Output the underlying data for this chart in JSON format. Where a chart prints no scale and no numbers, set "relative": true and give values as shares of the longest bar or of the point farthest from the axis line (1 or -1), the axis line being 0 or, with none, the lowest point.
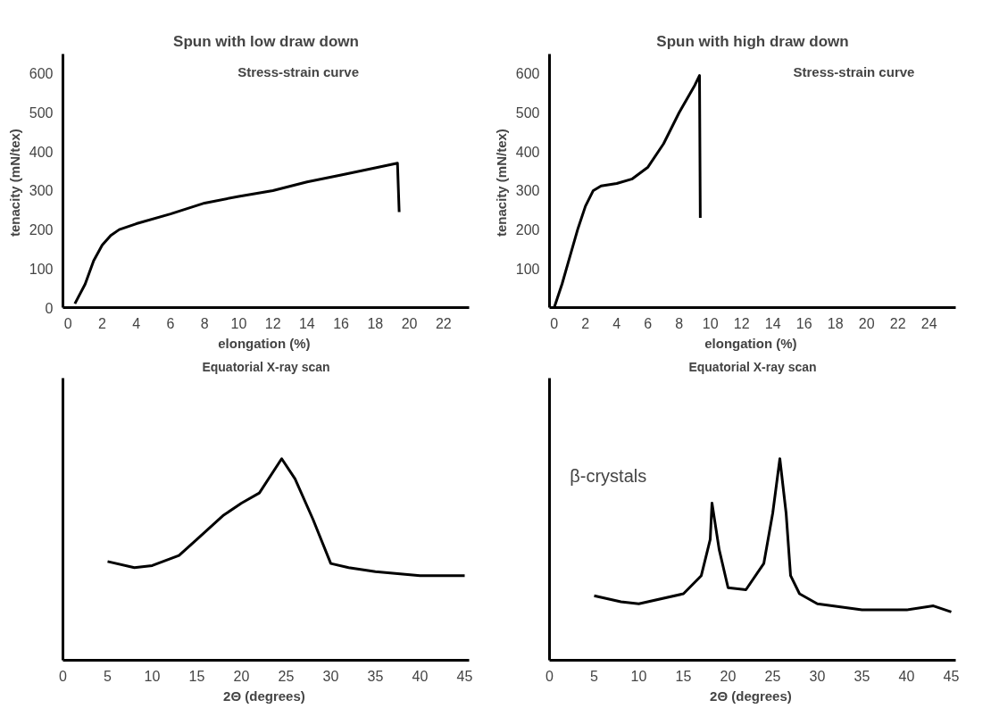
{
  "chart_data": [
    {
      "type": "line",
      "title": "Spun with low draw down",
      "subtitle": "Stress-strain curve",
      "xlabel": "elongation  (%)",
      "ylabel": "tenacity  (mN/tex)",
      "xlim": [
        -0.3,
        23.5
      ],
      "ylim": [
        0,
        650
      ],
      "xticks": [
        0,
        2,
        4,
        6,
        8,
        10,
        12,
        14,
        16,
        18,
        20,
        22
      ],
      "yticks": [
        0,
        100,
        200,
        300,
        400,
        500,
        600
      ],
      "grid": false,
      "marker": "none",
      "line_style": "solid",
      "series": [
        {
          "color": "#000000",
          "x": [
            0.4,
            1,
            1.5,
            2,
            2.5,
            3,
            4,
            6,
            8,
            10,
            12,
            14,
            16,
            18,
            19.3,
            19.4
          ],
          "values": [
            10,
            60,
            120,
            160,
            185,
            200,
            215,
            240,
            268,
            285,
            300,
            322,
            340,
            358,
            370,
            245
          ]
        }
      ]
    },
    {
      "type": "line",
      "title": "Spun with high draw down",
      "subtitle": "Stress-strain curve",
      "xlabel": "elongation  (%)",
      "ylabel": "tenacity  (mN/tex)",
      "xlim": [
        -0.3,
        25.7
      ],
      "ylim": [
        0,
        650
      ],
      "xticks": [
        0,
        2,
        4,
        6,
        8,
        10,
        12,
        14,
        16,
        18,
        20,
        22,
        24
      ],
      "yticks": [
        100,
        200,
        300,
        400,
        500,
        600
      ],
      "grid": false,
      "marker": "none",
      "line_style": "solid",
      "series": [
        {
          "color": "#000000",
          "x": [
            0,
            0.5,
            1,
            1.5,
            2,
            2.5,
            3,
            4,
            5,
            6,
            7,
            8,
            9,
            9.3,
            9.35
          ],
          "values": [
            0,
            60,
            130,
            200,
            260,
            300,
            312,
            318,
            330,
            360,
            420,
            500,
            570,
            595,
            230
          ]
        }
      ]
    },
    {
      "type": "line",
      "title": "Equatorial X-ray scan",
      "xlabel": "2Θ  (degrees)",
      "relative": true,
      "xlim": [
        0,
        45.5
      ],
      "xticks": [
        0,
        5,
        10,
        15,
        20,
        25,
        30,
        35,
        40,
        45
      ],
      "grid": false,
      "marker": "none",
      "line_style": "solid",
      "series": [
        {
          "color": "#000000",
          "x": [
            5,
            8,
            10,
            13,
            15,
            18,
            20,
            22,
            24.5,
            26,
            28,
            30,
            32,
            35,
            40,
            45
          ],
          "values": [
            0.49,
            0.46,
            0.47,
            0.52,
            0.6,
            0.72,
            0.78,
            0.83,
            1.0,
            0.9,
            0.7,
            0.48,
            0.46,
            0.44,
            0.42,
            0.42
          ]
        }
      ]
    },
    {
      "type": "line",
      "title": "Equatorial X-ray scan",
      "xlabel": "2Θ  (degrees)",
      "relative": true,
      "xlim": [
        0,
        45.5
      ],
      "xticks": [
        0,
        5,
        10,
        15,
        20,
        25,
        30,
        35,
        40,
        45
      ],
      "grid": false,
      "marker": "none",
      "line_style": "solid",
      "annotations": [
        "β-crystals"
      ],
      "series": [
        {
          "color": "#000000",
          "x": [
            5,
            8,
            10,
            15,
            17,
            18,
            18.2,
            19,
            20,
            22,
            24,
            25,
            25.8,
            26.5,
            27,
            28,
            30,
            35,
            40,
            43,
            45
          ],
          "values": [
            0.32,
            0.29,
            0.28,
            0.33,
            0.42,
            0.6,
            0.78,
            0.55,
            0.36,
            0.35,
            0.48,
            0.73,
            1.0,
            0.73,
            0.42,
            0.33,
            0.28,
            0.25,
            0.25,
            0.27,
            0.24
          ]
        }
      ]
    }
  ]
}
